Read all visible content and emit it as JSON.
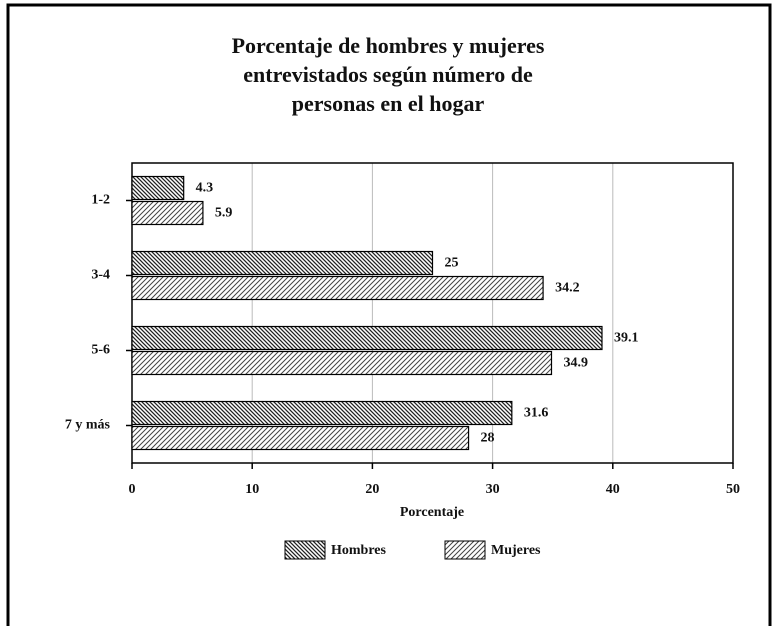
{
  "chart_data": {
    "type": "hbar",
    "title": [
      "Porcentaje de hombres y mujeres",
      "entrevistados según número de",
      "personas en el hogar"
    ],
    "x_label": "Porcentaje",
    "categories": [
      "1-2",
      "3-4",
      "5-6",
      "7 y más"
    ],
    "series": [
      {
        "name": "Hombres",
        "color": "#222222",
        "values": [
          4.3,
          25,
          39.1,
          31.6
        ]
      },
      {
        "name": "Mujeres",
        "color": "#444444",
        "values": [
          5.9,
          34.2,
          34.9,
          28
        ]
      }
    ],
    "xlim": [
      0,
      50
    ],
    "xticks": [
      0,
      10,
      20,
      30,
      40,
      50
    ],
    "grid": true,
    "legend": "bottom"
  }
}
